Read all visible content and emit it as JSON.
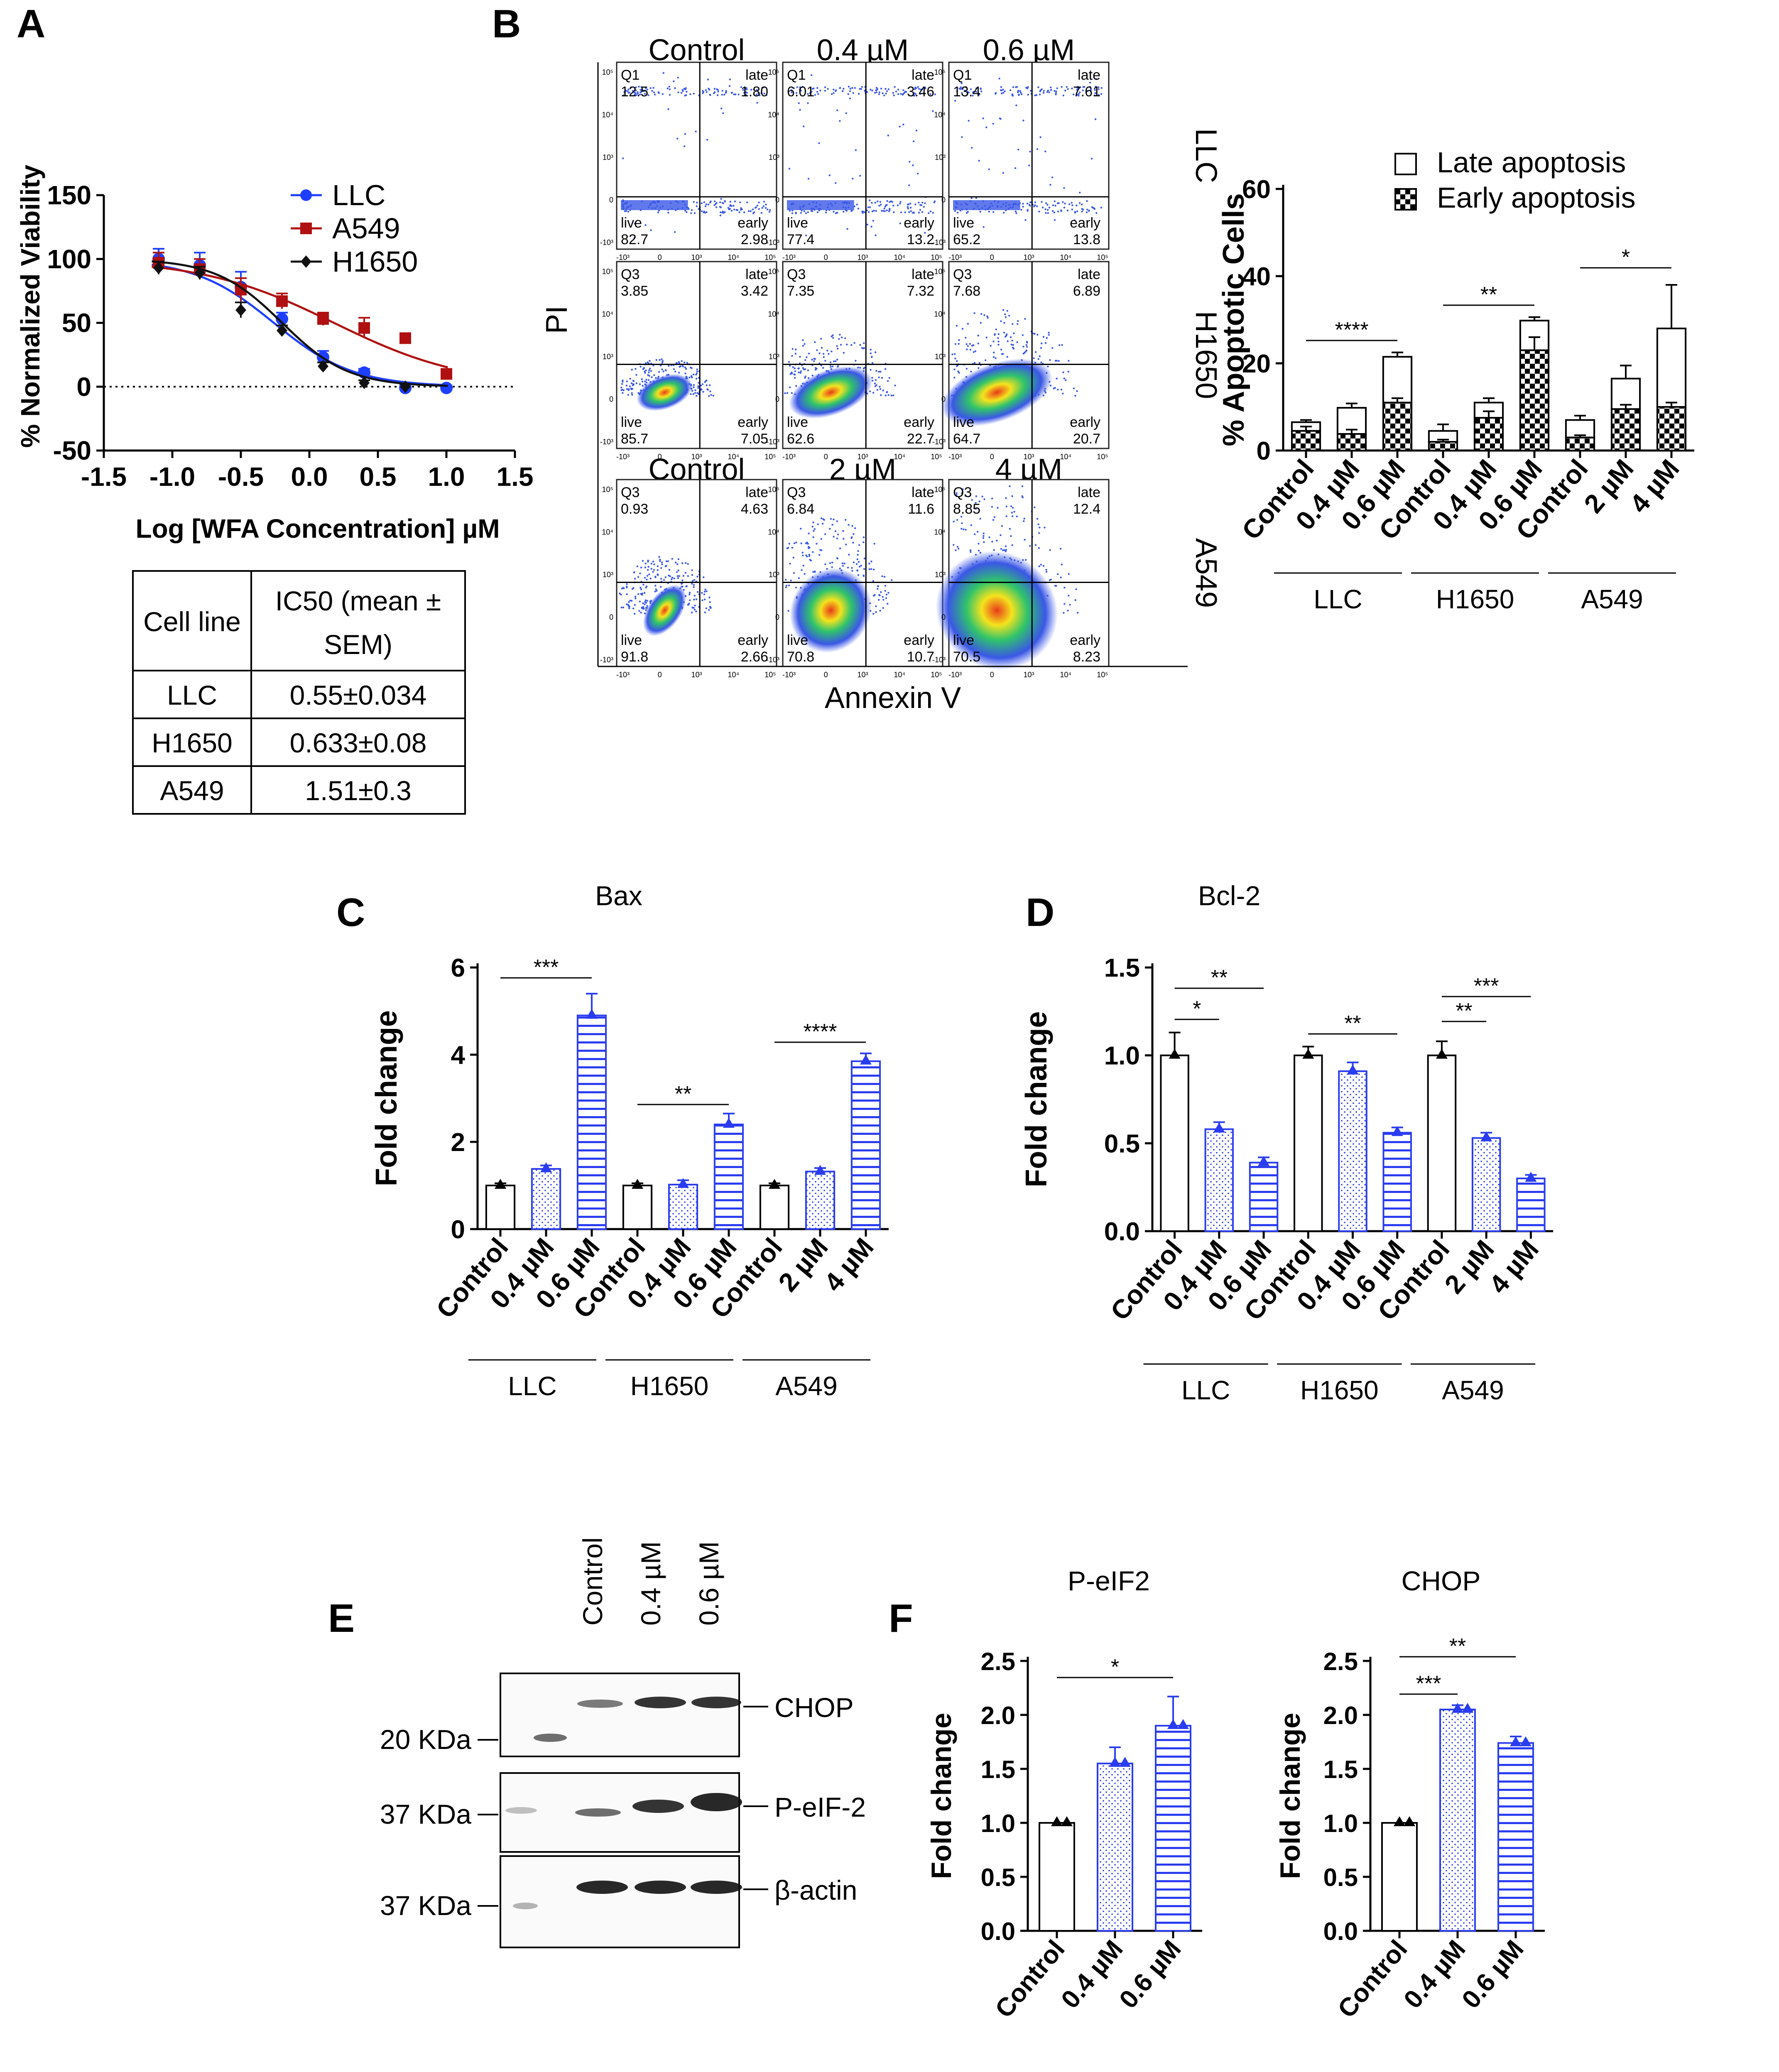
{
  "panels": {
    "A": "A",
    "B": "B",
    "C": "C",
    "D": "D",
    "E": "E",
    "F": "F"
  },
  "colors": {
    "llc": "#1f3fff",
    "a549": "#b01010",
    "h1650": "#111111",
    "blue": "#2a3cf0",
    "black": "#000000"
  },
  "chart_data": [
    {
      "id": "A",
      "type": "line",
      "xlabel": "Log [WFA Concentration] µM",
      "ylabel": "% Normalized Viability",
      "xlim": [
        -1.5,
        1.5
      ],
      "ylim": [
        -50,
        150
      ],
      "xticks": [
        "-1.5",
        "-1.0",
        "-0.5",
        "0.0",
        "0.5",
        "1.0",
        "1.5"
      ],
      "yticks": [
        "-50",
        "0",
        "50",
        "100",
        "150"
      ],
      "series": [
        {
          "name": "LLC",
          "x": [
            -1.1,
            -0.8,
            -0.5,
            -0.2,
            0.1,
            0.4,
            0.7,
            1.0
          ],
          "y": [
            100,
            95,
            78,
            53,
            23,
            11,
            -1,
            -1
          ],
          "err": [
            8,
            10,
            12,
            5,
            5,
            3,
            2,
            2
          ],
          "ic50": 0.55,
          "hill": 1.5
        },
        {
          "name": "A549",
          "x": [
            -1.1,
            -0.8,
            -0.5,
            -0.2,
            0.1,
            0.4,
            0.7,
            1.0
          ],
          "y": [
            97,
            92,
            76,
            67,
            53,
            46,
            38,
            10
          ],
          "err": [
            8,
            8,
            9,
            6,
            5,
            8,
            3,
            3
          ],
          "ic50": 1.51,
          "hill": 0.9
        },
        {
          "name": "H1650",
          "x": [
            -1.1,
            -0.8,
            -0.5,
            -0.2,
            0.1,
            0.4,
            0.7
          ],
          "y": [
            93,
            89,
            60,
            44,
            16,
            3,
            0
          ],
          "err": [
            5,
            5,
            6,
            4,
            3,
            2,
            2
          ],
          "ic50": 0.633,
          "hill": 1.8
        }
      ],
      "table": {
        "headers": [
          "Cell line",
          "IC50 (mean ±",
          "SEM)"
        ],
        "rows": [
          [
            "LLC",
            "0.55±0.034"
          ],
          [
            "H1650",
            "0.633±0.08"
          ],
          [
            "A549",
            "1.51±0.3"
          ]
        ]
      }
    },
    {
      "id": "B-flow",
      "type": "scatter",
      "xlabel": "Annexin V",
      "ylabel": "PI",
      "columns_top": [
        "Control",
        "0.4 µM",
        "0.6 µM"
      ],
      "columns_a549": [
        "Control",
        "2 µM",
        "4 µM"
      ],
      "rows": [
        "LLC",
        "H1650",
        "A549"
      ],
      "tick_labels": {
        "y": [
          "10⁵",
          "10⁴",
          "10³",
          "0",
          "-10³"
        ],
        "x": [
          "-10³",
          "0",
          "10³",
          "10⁴",
          "10⁵"
        ]
      },
      "quadrants": [
        [
          {
            "ul": "Q1",
            "ulv": "12.5",
            "late": "1.80",
            "live": "82.7",
            "early": "2.98"
          },
          {
            "ul": "Q1",
            "ulv": "6.01",
            "late": "3.46",
            "live": "77.4",
            "early": "13.2"
          },
          {
            "ul": "Q1",
            "ulv": "13.4",
            "late": "7.61",
            "live": "65.2",
            "early": "13.8"
          }
        ],
        [
          {
            "ul": "Q3",
            "ulv": "3.85",
            "late": "3.42",
            "live": "85.7",
            "early": "7.05"
          },
          {
            "ul": "Q3",
            "ulv": "7.35",
            "late": "7.32",
            "live": "62.6",
            "early": "22.7"
          },
          {
            "ul": "Q3",
            "ulv": "7.68",
            "late": "6.89",
            "live": "64.7",
            "early": "20.7"
          }
        ],
        [
          {
            "ul": "Q3",
            "ulv": "0.93",
            "late": "4.63",
            "live": "91.8",
            "early": "2.66"
          },
          {
            "ul": "Q3",
            "ulv": "6.84",
            "late": "11.6",
            "live": "70.8",
            "early": "10.7"
          },
          {
            "ul": "Q3",
            "ulv": "8.85",
            "late": "12.4",
            "live": "70.5",
            "early": "8.23"
          }
        ]
      ],
      "quadrant_words": {
        "late": "late",
        "live": "live",
        "early": "early"
      }
    },
    {
      "id": "B-bar",
      "type": "bar",
      "ylabel": "% Apoptotic Cells",
      "ylim": [
        0,
        60
      ],
      "yticks": [
        "0",
        "20",
        "40",
        "60"
      ],
      "categories": [
        "Control",
        "0.4 µM",
        "0.6 µM",
        "Control",
        "0.4 µM",
        "0.6 µM",
        "Control",
        "2 µM",
        "4 µM"
      ],
      "groups": [
        "LLC",
        "H1650",
        "A549"
      ],
      "series": [
        {
          "name": "Early apoptosis",
          "values": [
            4.5,
            3.8,
            11,
            2,
            7.5,
            23,
            3,
            9.5,
            10
          ],
          "err": [
            1,
            1,
            1,
            0.5,
            1.5,
            3,
            0.5,
            1,
            1
          ]
        },
        {
          "name": "Late apoptosis",
          "values": [
            2,
            6,
            10.5,
            2.5,
            3.5,
            6.8,
            4,
            7,
            18
          ],
          "err": [
            0.5,
            1,
            1,
            1.5,
            1,
            0.8,
            1,
            3,
            10
          ]
        }
      ],
      "sig": [
        {
          "label": "****",
          "from": 0,
          "to": 2
        },
        {
          "label": "**",
          "from": 3,
          "to": 5
        },
        {
          "label": "*",
          "from": 6,
          "to": 8
        }
      ]
    },
    {
      "id": "C",
      "type": "bar",
      "title": "Bax",
      "ylabel": "Fold change",
      "ylim": [
        0,
        6
      ],
      "yticks": [
        "0",
        "2",
        "4",
        "6"
      ],
      "categories": [
        "Control",
        "0.4 µM",
        "0.6 µM",
        "Control",
        "0.4 µM",
        "0.6 µM",
        "Control",
        "2 µM",
        "4 µM"
      ],
      "groups": [
        "LLC",
        "H1650",
        "A549"
      ],
      "values": [
        1,
        1.38,
        4.9,
        1,
        1.02,
        2.4,
        1,
        1.32,
        3.85
      ],
      "err": [
        0.05,
        0.08,
        0.5,
        0.05,
        0.1,
        0.25,
        0.05,
        0.08,
        0.18
      ],
      "sig": [
        {
          "label": "***",
          "from": 0,
          "to": 2
        },
        {
          "label": "**",
          "from": 3,
          "to": 5
        },
        {
          "label": "****",
          "from": 6,
          "to": 8
        }
      ]
    },
    {
      "id": "D",
      "type": "bar",
      "title": "Bcl-2",
      "ylabel": "Fold change",
      "ylim": [
        0,
        1.5
      ],
      "yticks": [
        "0.0",
        "0.5",
        "1.0",
        "1.5"
      ],
      "categories": [
        "Control",
        "0.4 µM",
        "0.6 µM",
        "Control",
        "0.4 µM",
        "0.6 µM",
        "Control",
        "2 µM",
        "4 µM"
      ],
      "groups": [
        "LLC",
        "H1650",
        "A549"
      ],
      "values": [
        1,
        0.58,
        0.39,
        1,
        0.91,
        0.56,
        1,
        0.53,
        0.3
      ],
      "err": [
        0.13,
        0.04,
        0.03,
        0.05,
        0.05,
        0.03,
        0.08,
        0.03,
        0.02
      ],
      "sig": [
        {
          "label": "*",
          "from": 0,
          "to": 1
        },
        {
          "label": "**",
          "from": 0,
          "to": 2
        },
        {
          "label": "**",
          "from": 3,
          "to": 5
        },
        {
          "label": "**",
          "from": 6,
          "to": 7
        },
        {
          "label": "***",
          "from": 6,
          "to": 8
        }
      ]
    },
    {
      "id": "F1",
      "type": "bar",
      "title": "P-eIF2",
      "ylabel": "Fold change",
      "ylim": [
        0,
        2.5
      ],
      "yticks": [
        "0.0",
        "0.5",
        "1.0",
        "1.5",
        "2.0",
        "2.5"
      ],
      "categories": [
        "Control",
        "0.4 µM",
        "0.6 µM"
      ],
      "values": [
        1,
        1.55,
        1.9
      ],
      "err": [
        0,
        0.15,
        0.27
      ],
      "sig": [
        {
          "label": "*",
          "from": 0,
          "to": 2
        }
      ]
    },
    {
      "id": "F2",
      "type": "bar",
      "title": "CHOP",
      "ylabel": "Fold change",
      "ylim": [
        0,
        2.5
      ],
      "yticks": [
        "0.0",
        "0.5",
        "1.0",
        "1.5",
        "2.0",
        "2.5"
      ],
      "categories": [
        "Control",
        "0.4 µM",
        "0.6 µM"
      ],
      "values": [
        1,
        2.05,
        1.74
      ],
      "err": [
        0,
        0.04,
        0.06
      ],
      "sig": [
        {
          "label": "***",
          "from": 0,
          "to": 1
        },
        {
          "label": "**",
          "from": 0,
          "to": 2
        }
      ]
    }
  ],
  "western": {
    "lanes": [
      "Control",
      "0.4 µM",
      "0.6 µM"
    ],
    "bands": [
      "CHOP",
      "P-eIF-2",
      "β-actin"
    ],
    "markers": [
      "20 KDa",
      "37 KDa",
      "37 KDa"
    ]
  }
}
